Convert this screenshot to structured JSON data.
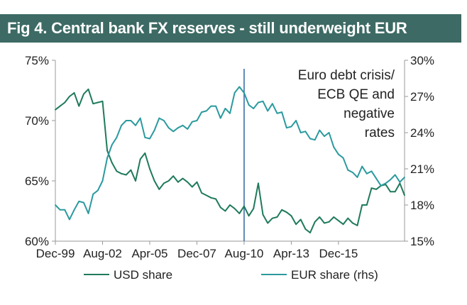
{
  "title": "Fig 4. Central bank FX reserves - still underweight EUR",
  "colors": {
    "title_bg": "#3d6a64",
    "usd": "#1f7a5a",
    "eur": "#2a9a9e",
    "marker": "#3b6ea8",
    "axis": "#999999"
  },
  "chart_data": {
    "type": "line",
    "title": "Fig 4. Central bank FX reserves - still underweight EUR",
    "x_start": "Dec-99",
    "x_end": "Jun-17",
    "x_tick_labels": [
      "Dec-99",
      "Aug-02",
      "Apr-05",
      "Dec-07",
      "Aug-10",
      "Apr-13",
      "Dec-15"
    ],
    "y_left": {
      "min": 60,
      "max": 75,
      "ticks": [
        "60%",
        "65%",
        "70%",
        "75%"
      ]
    },
    "y_right": {
      "min": 15,
      "max": 30,
      "ticks": [
        "15%",
        "18%",
        "21%",
        "24%",
        "27%",
        "30%"
      ]
    },
    "vertical_marker": "Aug-10",
    "annotation": [
      "Euro debt crisis/",
      "ECB QE and",
      "negative",
      "rates"
    ],
    "legend_position": "bottom",
    "series": [
      {
        "name": "USD share",
        "axis": "left",
        "values": [
          70.9,
          71.2,
          71.5,
          72.0,
          72.3,
          71.2,
          72.2,
          72.6,
          71.4,
          71.5,
          71.6,
          67.5,
          66.5,
          65.8,
          65.6,
          65.5,
          65.9,
          65.0,
          66.8,
          67.3,
          66.0,
          65.0,
          64.3,
          64.8,
          65.0,
          65.4,
          64.9,
          65.2,
          64.9,
          64.5,
          64.9,
          64.0,
          63.8,
          63.6,
          63.5,
          62.8,
          62.5,
          63.0,
          62.7,
          62.3,
          62.9,
          62.1,
          62.7,
          64.8,
          62.2,
          61.5,
          61.9,
          62.0,
          62.6,
          62.4,
          62.1,
          61.4,
          61.8,
          61.0,
          60.7,
          61.6,
          62.0,
          61.5,
          61.6,
          62.0,
          61.7,
          61.4,
          61.9,
          61.5,
          61.3,
          63.0,
          63.0,
          64.4,
          64.3,
          64.6,
          64.7,
          64.1,
          64.1,
          64.8,
          63.8
        ]
      },
      {
        "name": "EUR share (rhs)",
        "axis": "right",
        "values": [
          18.0,
          17.6,
          17.6,
          16.8,
          17.6,
          18.3,
          18.2,
          17.3,
          18.9,
          19.2,
          20.0,
          21.9,
          23.0,
          23.6,
          24.6,
          25.0,
          25.0,
          24.6,
          25.2,
          23.6,
          23.5,
          24.2,
          25.2,
          25.0,
          24.4,
          24.1,
          24.4,
          24.6,
          24.3,
          24.9,
          25.0,
          25.7,
          25.8,
          26.2,
          26.2,
          25.2,
          26.0,
          25.6,
          27.3,
          27.8,
          27.3,
          26.3,
          26.0,
          26.5,
          26.6,
          25.8,
          26.4,
          25.6,
          25.7,
          24.4,
          24.5,
          25.0,
          24.0,
          24.1,
          23.5,
          23.4,
          24.2,
          23.7,
          24.0,
          22.8,
          22.2,
          21.9,
          20.9,
          20.7,
          20.3,
          21.2,
          20.6,
          20.8,
          20.2,
          19.6,
          19.8,
          20.1,
          20.5,
          19.9,
          20.3
        ]
      }
    ]
  },
  "legend": {
    "usd_label": "USD share",
    "eur_label": "EUR share (rhs)"
  }
}
